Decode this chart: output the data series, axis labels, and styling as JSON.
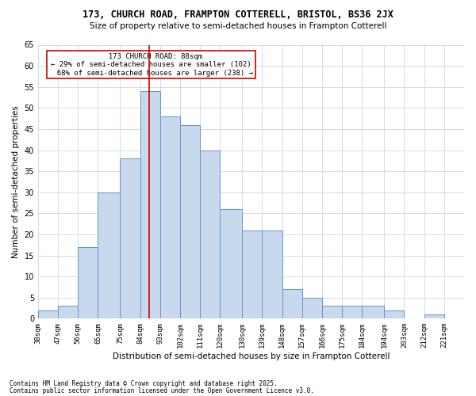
{
  "title": "173, CHURCH ROAD, FRAMPTON COTTERELL, BRISTOL, BS36 2JX",
  "subtitle": "Size of property relative to semi-detached houses in Frampton Cotterell",
  "xlabel": "Distribution of semi-detached houses by size in Frampton Cotterell",
  "ylabel": "Number of semi-detached properties",
  "bins": [
    "38sqm",
    "47sqm",
    "56sqm",
    "65sqm",
    "75sqm",
    "84sqm",
    "93sqm",
    "102sqm",
    "111sqm",
    "120sqm",
    "130sqm",
    "139sqm",
    "148sqm",
    "157sqm",
    "166sqm",
    "175sqm",
    "184sqm",
    "194sqm",
    "203sqm",
    "212sqm",
    "221sqm"
  ],
  "values": [
    2,
    3,
    17,
    30,
    38,
    54,
    48,
    46,
    40,
    26,
    21,
    21,
    7,
    5,
    3,
    3,
    3,
    2,
    0,
    1,
    0
  ],
  "bar_color": "#c9d9ed",
  "bar_edge_color": "#6495c8",
  "vline_x": 88,
  "vline_label": "173 CHURCH ROAD: 88sqm",
  "pct_smaller": "29% of semi-detached houses are smaller (102)",
  "pct_larger": "68% of semi-detached houses are larger (238)",
  "annotation_box_color": "#ffffff",
  "annotation_box_edge": "#cc0000",
  "vline_color": "#cc0000",
  "grid_color": "#c8d8e8",
  "background_color": "#ffffff",
  "footer_line1": "Contains HM Land Registry data © Crown copyright and database right 2025.",
  "footer_line2": "Contains public sector information licensed under the Open Government Licence v3.0.",
  "ylim": [
    0,
    65
  ],
  "bin_edges": [
    38,
    47,
    56,
    65,
    75,
    84,
    93,
    102,
    111,
    120,
    130,
    139,
    148,
    157,
    166,
    175,
    184,
    194,
    203,
    212,
    221,
    230
  ]
}
